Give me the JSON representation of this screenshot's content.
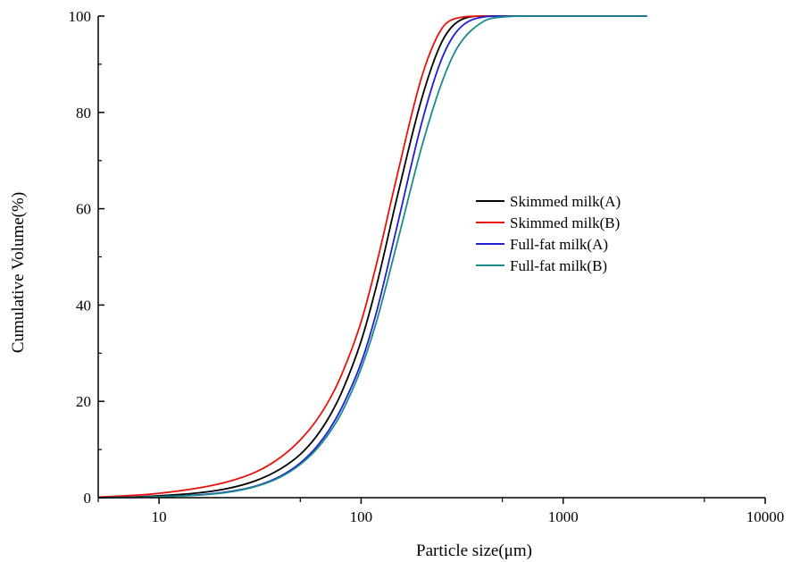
{
  "chart_data": {
    "type": "line",
    "title": "",
    "xlabel": "Particle size(μm)",
    "ylabel": "Cumulative Volume(%)",
    "xscale": "log",
    "xlim": [
      5,
      10000
    ],
    "ylim": [
      0,
      100
    ],
    "x_ticks": [
      10,
      100,
      1000,
      10000
    ],
    "x_tick_labels": [
      "10",
      "100",
      "1000",
      "10000"
    ],
    "y_ticks": [
      0,
      20,
      40,
      60,
      80,
      100
    ],
    "y_tick_labels": [
      "0",
      "20",
      "40",
      "60",
      "80",
      "100"
    ],
    "grid": false,
    "legend_position": "right-center",
    "x": [
      5,
      10,
      20,
      30,
      40,
      50,
      60,
      70,
      80,
      100,
      120,
      150,
      200,
      250,
      300,
      400,
      500,
      700,
      1000,
      2600
    ],
    "series": [
      {
        "name": "Skimmed milk(A)",
        "color": "#000000",
        "values": [
          0.0,
          0.4,
          1.6,
          3.5,
          6.0,
          9.0,
          12.7,
          17.0,
          21.8,
          32.5,
          44.5,
          62.0,
          83.0,
          94.5,
          98.8,
          100,
          100,
          100,
          100,
          100
        ]
      },
      {
        "name": "Skimmed milk(B)",
        "color": "#e8120c",
        "values": [
          0.1,
          0.9,
          2.9,
          5.3,
          8.4,
          12.0,
          16.0,
          20.5,
          25.5,
          36.5,
          49.0,
          66.5,
          87.5,
          97.3,
          99.6,
          100,
          100,
          100,
          100,
          100
        ]
      },
      {
        "name": "Full-fat milk(A)",
        "color": "#1f1fd6",
        "values": [
          0.0,
          0.2,
          1.0,
          2.4,
          4.5,
          7.2,
          10.5,
          14.3,
          18.6,
          28.0,
          39.0,
          56.0,
          78.0,
          91.0,
          97.0,
          99.8,
          100,
          100,
          100,
          100
        ]
      },
      {
        "name": "Full-fat milk(B)",
        "color": "#1a8a8a",
        "values": [
          0.0,
          0.2,
          0.9,
          2.3,
          4.3,
          6.9,
          10.0,
          13.6,
          17.6,
          26.8,
          37.0,
          52.5,
          73.0,
          86.0,
          93.5,
          98.8,
          99.8,
          100,
          100,
          100
        ]
      }
    ]
  }
}
